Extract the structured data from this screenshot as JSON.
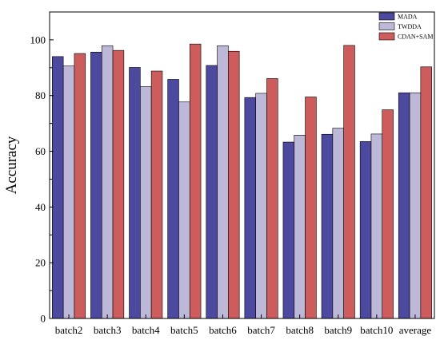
{
  "chart_data": {
    "type": "bar",
    "ylabel": "Accuracy",
    "xlabel": "",
    "ylim": [
      0,
      110
    ],
    "yticks": [
      0,
      20,
      40,
      60,
      80,
      100
    ],
    "grid": false,
    "legend_position": "top-right",
    "categories": [
      "batch2",
      "batch3",
      "batch4",
      "batch5",
      "batch6",
      "batch7",
      "batch8",
      "batch9",
      "batch10",
      "average"
    ],
    "series": [
      {
        "name": "MADA",
        "color": "#4b4a9e",
        "values": [
          94.0,
          95.6,
          90.1,
          85.8,
          90.8,
          79.3,
          63.3,
          66.1,
          63.5,
          81.0
        ]
      },
      {
        "name": "TWDDA",
        "color": "#bdb7d8",
        "values": [
          90.6,
          97.9,
          83.2,
          77.7,
          97.9,
          80.8,
          65.8,
          68.3,
          66.2,
          81.0
        ]
      },
      {
        "name": "CDAN+SAM",
        "color": "#cd5c5c",
        "values": [
          95.1,
          96.2,
          88.8,
          98.5,
          95.9,
          86.1,
          79.5,
          98.0,
          74.9,
          90.3
        ]
      }
    ]
  }
}
